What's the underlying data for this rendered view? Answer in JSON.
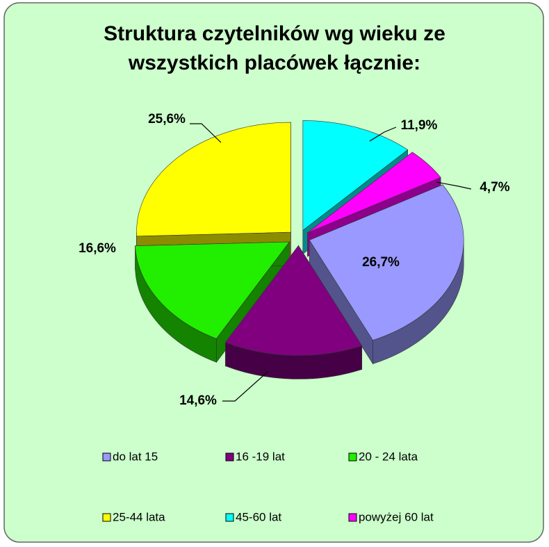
{
  "chart_data": {
    "type": "pie3d",
    "title": [
      "Struktura czytelników wg wieku ze",
      "wszystkich placówek łącznie:"
    ],
    "categories": [
      "do lat 15",
      "16 -19 lat",
      "20 - 24 lata",
      "25-44 lata",
      "45-60 lat",
      "powyżej 60 lat"
    ],
    "values": [
      26.7,
      14.6,
      16.6,
      25.6,
      11.9,
      4.7
    ],
    "value_labels": [
      "26,7%",
      "14,6%",
      "16,6%",
      "25,6%",
      "11,9%",
      "4,7%"
    ],
    "colors": [
      "#9999ff",
      "#800080",
      "#22ee00",
      "#ffff00",
      "#00ffff",
      "#ff00ff"
    ],
    "legend": "bottom"
  }
}
